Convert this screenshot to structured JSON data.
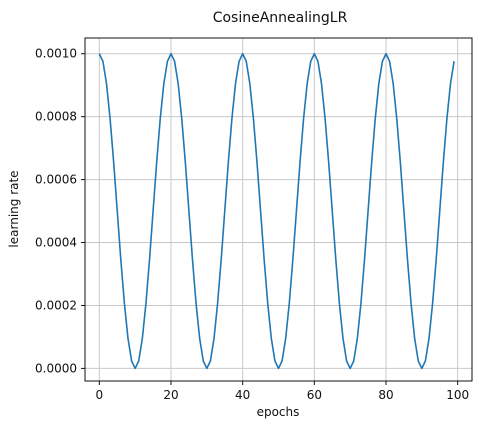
{
  "chart_data": {
    "type": "line",
    "title": "CosineAnnealingLR",
    "xlabel": "epochs",
    "ylabel": "learning rate",
    "xlim": [
      -4,
      104
    ],
    "ylim": [
      -4e-05,
      0.00105
    ],
    "grid": true,
    "x_ticks": [
      0,
      20,
      40,
      60,
      80,
      100
    ],
    "x_tick_labels": [
      "0",
      "20",
      "40",
      "60",
      "80",
      "100"
    ],
    "y_ticks": [
      0,
      0.0002,
      0.0004,
      0.0006,
      0.0008,
      0.001
    ],
    "y_tick_labels": [
      "0.0000",
      "0.0002",
      "0.0004",
      "0.0006",
      "0.0008",
      "0.0010"
    ],
    "series": [
      {
        "color": "#1f77b4",
        "x": [
          0,
          1,
          2,
          3,
          4,
          5,
          6,
          7,
          8,
          9,
          10,
          11,
          12,
          13,
          14,
          15,
          16,
          17,
          18,
          19,
          20,
          21,
          22,
          23,
          24,
          25,
          26,
          27,
          28,
          29,
          30,
          31,
          32,
          33,
          34,
          35,
          36,
          37,
          38,
          39,
          40,
          41,
          42,
          43,
          44,
          45,
          46,
          47,
          48,
          49,
          50,
          51,
          52,
          53,
          54,
          55,
          56,
          57,
          58,
          59,
          60,
          61,
          62,
          63,
          64,
          65,
          66,
          67,
          68,
          69,
          70,
          71,
          72,
          73,
          74,
          75,
          76,
          77,
          78,
          79,
          80,
          81,
          82,
          83,
          84,
          85,
          86,
          87,
          88,
          89,
          90,
          91,
          92,
          93,
          94,
          95,
          96,
          97,
          98,
          99
        ],
        "y": [
          0.001,
          0.000976,
          0.000905,
          0.000794,
          0.000655,
          0.0005,
          0.000345,
          0.000206,
          9.5e-05,
          2.4e-05,
          0,
          2.4e-05,
          9.5e-05,
          0.000206,
          0.000345,
          0.0005,
          0.000655,
          0.000794,
          0.000905,
          0.000976,
          0.001,
          0.000976,
          0.000905,
          0.000794,
          0.000655,
          0.0005,
          0.000345,
          0.000206,
          9.5e-05,
          2.4e-05,
          0,
          2.4e-05,
          9.5e-05,
          0.000206,
          0.000345,
          0.0005,
          0.000655,
          0.000794,
          0.000905,
          0.000976,
          0.001,
          0.000976,
          0.000905,
          0.000794,
          0.000655,
          0.0005,
          0.000345,
          0.000206,
          9.5e-05,
          2.4e-05,
          0,
          2.4e-05,
          9.5e-05,
          0.000206,
          0.000345,
          0.0005,
          0.000655,
          0.000794,
          0.000905,
          0.000976,
          0.001,
          0.000976,
          0.000905,
          0.000794,
          0.000655,
          0.0005,
          0.000345,
          0.000206,
          9.5e-05,
          2.4e-05,
          0,
          2.4e-05,
          9.5e-05,
          0.000206,
          0.000345,
          0.0005,
          0.000655,
          0.000794,
          0.000905,
          0.000976,
          0.001,
          0.000976,
          0.000905,
          0.000794,
          0.000655,
          0.0005,
          0.000345,
          0.000206,
          9.5e-05,
          2.4e-05,
          0,
          2.4e-05,
          9.5e-05,
          0.000206,
          0.000345,
          0.0005,
          0.000655,
          0.000794,
          0.000905,
          0.000976
        ]
      }
    ]
  }
}
